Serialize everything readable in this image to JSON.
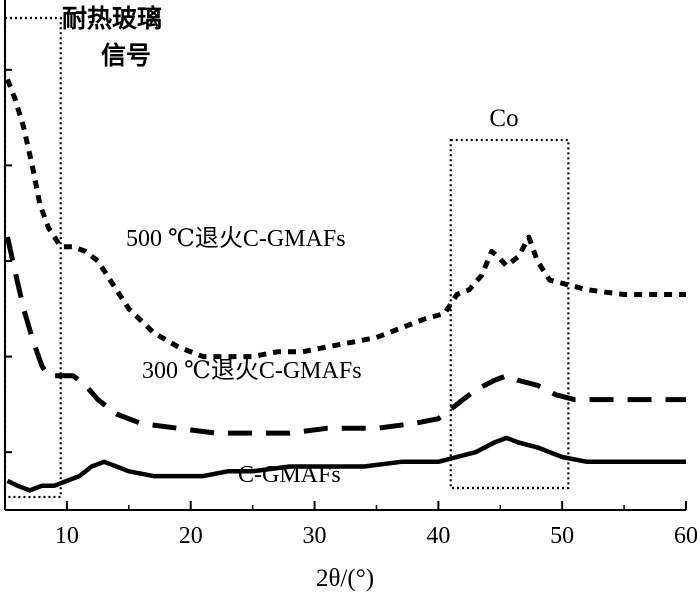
{
  "chart_data": {
    "type": "line",
    "title": "",
    "xlabel": "2θ/(°)",
    "ylabel": "",
    "xlim": [
      5,
      60
    ],
    "ylim": [
      0,
      1
    ],
    "x_ticks": [
      10,
      20,
      30,
      40,
      50,
      60
    ],
    "y_ticks_labeled": false,
    "series": [
      {
        "name": "500 ℃退火C-GMAFs",
        "style": "dashed-short",
        "points": [
          [
            5.2,
            0.88
          ],
          [
            5.8,
            0.84
          ],
          [
            6.5,
            0.78
          ],
          [
            7.2,
            0.7
          ],
          [
            7.8,
            0.62
          ],
          [
            8.5,
            0.57
          ],
          [
            9.0,
            0.55
          ],
          [
            9.5,
            0.53
          ],
          [
            10.5,
            0.53
          ],
          [
            11.5,
            0.52
          ],
          [
            12.5,
            0.5
          ],
          [
            13.5,
            0.46
          ],
          [
            15,
            0.4
          ],
          [
            17,
            0.35
          ],
          [
            19,
            0.32
          ],
          [
            21,
            0.3
          ],
          [
            23,
            0.3
          ],
          [
            25,
            0.3
          ],
          [
            27,
            0.31
          ],
          [
            29,
            0.31
          ],
          [
            31,
            0.32
          ],
          [
            33,
            0.33
          ],
          [
            35,
            0.34
          ],
          [
            37,
            0.36
          ],
          [
            39,
            0.38
          ],
          [
            40.5,
            0.39
          ],
          [
            41.5,
            0.43
          ],
          [
            42.5,
            0.44
          ],
          [
            43.5,
            0.47
          ],
          [
            44.3,
            0.52
          ],
          [
            44.8,
            0.51
          ],
          [
            45.5,
            0.49
          ],
          [
            46.5,
            0.51
          ],
          [
            47.3,
            0.55
          ],
          [
            48,
            0.5
          ],
          [
            49,
            0.46
          ],
          [
            50.5,
            0.45
          ],
          [
            52,
            0.44
          ],
          [
            55,
            0.43
          ],
          [
            58,
            0.43
          ],
          [
            60,
            0.43
          ]
        ]
      },
      {
        "name": "300 ℃退火C-GMAFs",
        "style": "dashed-long",
        "points": [
          [
            5.2,
            0.55
          ],
          [
            5.8,
            0.48
          ],
          [
            6.5,
            0.4
          ],
          [
            7.3,
            0.33
          ],
          [
            8.0,
            0.28
          ],
          [
            8.5,
            0.26
          ],
          [
            9.5,
            0.26
          ],
          [
            10.5,
            0.26
          ],
          [
            11.5,
            0.24
          ],
          [
            12.5,
            0.21
          ],
          [
            14,
            0.18
          ],
          [
            16,
            0.16
          ],
          [
            19,
            0.15
          ],
          [
            22,
            0.14
          ],
          [
            25,
            0.14
          ],
          [
            28,
            0.14
          ],
          [
            31,
            0.15
          ],
          [
            35,
            0.15
          ],
          [
            38,
            0.16
          ],
          [
            40,
            0.17
          ],
          [
            41.5,
            0.2
          ],
          [
            43,
            0.23
          ],
          [
            44.5,
            0.25
          ],
          [
            45.5,
            0.26
          ],
          [
            46.5,
            0.25
          ],
          [
            48,
            0.24
          ],
          [
            49.5,
            0.22
          ],
          [
            51,
            0.21
          ],
          [
            54,
            0.21
          ],
          [
            57,
            0.21
          ],
          [
            60,
            0.21
          ]
        ]
      },
      {
        "name": "C-GMAFs",
        "style": "solid",
        "points": [
          [
            5.2,
            0.04
          ],
          [
            6,
            0.03
          ],
          [
            7,
            0.02
          ],
          [
            8,
            0.03
          ],
          [
            9,
            0.03
          ],
          [
            10,
            0.04
          ],
          [
            11,
            0.05
          ],
          [
            12,
            0.07
          ],
          [
            13,
            0.08
          ],
          [
            14,
            0.07
          ],
          [
            15,
            0.06
          ],
          [
            17,
            0.05
          ],
          [
            19,
            0.05
          ],
          [
            21,
            0.05
          ],
          [
            23,
            0.06
          ],
          [
            25,
            0.06
          ],
          [
            28,
            0.07
          ],
          [
            31,
            0.07
          ],
          [
            34,
            0.07
          ],
          [
            37,
            0.08
          ],
          [
            40,
            0.08
          ],
          [
            41.5,
            0.09
          ],
          [
            43,
            0.1
          ],
          [
            44.5,
            0.12
          ],
          [
            45.5,
            0.13
          ],
          [
            46.5,
            0.12
          ],
          [
            48,
            0.11
          ],
          [
            50,
            0.09
          ],
          [
            52,
            0.08
          ],
          [
            55,
            0.08
          ],
          [
            58,
            0.08
          ],
          [
            60,
            0.08
          ]
        ]
      }
    ],
    "annotations": {
      "glass_label_line1": "耐热玻璃",
      "glass_label_line2": "信号",
      "co_label": "Co",
      "label_500": "500 ℃退火C-GMAFs",
      "label_300": "300 ℃退火C-GMAFs",
      "label_cgmafs": "C-GMAFs"
    },
    "highlight_boxes": [
      {
        "name": "heat-resistant-glass-region",
        "x_range": [
          5.0,
          9.5
        ]
      },
      {
        "name": "co-region",
        "x_range": [
          41.0,
          50.5
        ]
      }
    ]
  }
}
